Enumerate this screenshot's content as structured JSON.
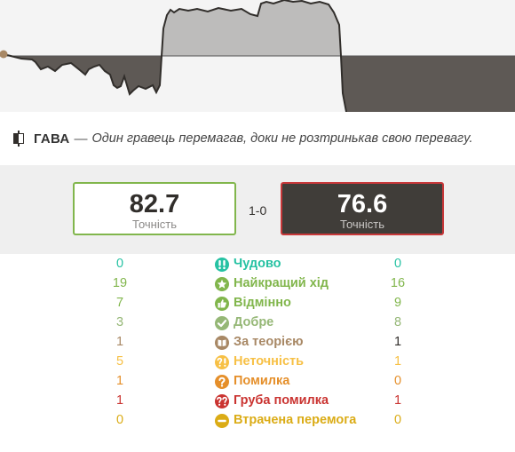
{
  "headline": {
    "title": "ГАВА",
    "dash": "—",
    "description": "Один гравець перемагав, доки не розтринькав свою перевагу."
  },
  "summary": {
    "white_accuracy": "82.7",
    "black_accuracy": "76.6",
    "accuracy_label": "Точність",
    "score": "1-0"
  },
  "classifications": [
    {
      "name": "Чудово",
      "white": "0",
      "black": "0",
      "color": "#26c2a3",
      "icon": "brilliant-icon"
    },
    {
      "name": "Найкращий хід",
      "white": "19",
      "black": "16",
      "color": "#81b64c",
      "icon": "star-icon"
    },
    {
      "name": "Відмінно",
      "white": "7",
      "black": "9",
      "color": "#81b64c",
      "icon": "thumbs-up-icon"
    },
    {
      "name": "Добре",
      "white": "3",
      "black": "8",
      "color": "#95b776",
      "icon": "check-icon"
    },
    {
      "name": "За теорією",
      "white": "1",
      "black": "1",
      "color": "#a88865",
      "icon": "book-icon"
    },
    {
      "name": "Неточність",
      "white": "5",
      "black": "1",
      "color": "#f7c045",
      "icon": "inaccuracy-icon"
    },
    {
      "name": "Помилка",
      "white": "1",
      "black": "0",
      "color": "#e58f2a",
      "icon": "question-icon"
    },
    {
      "name": "Груба помилка",
      "white": "1",
      "black": "1",
      "color": "#ca3431",
      "icon": "blunder-icon"
    },
    {
      "name": "Втрачена перемога",
      "white": "0",
      "black": "0",
      "color": "#dbac16",
      "icon": "minus-icon"
    }
  ],
  "colors": {
    "graph_dark": "#5e5955",
    "graph_light": "#bdbcbb",
    "graph_bg": "#f4f4f4",
    "white_border": "#81b64c",
    "black_border": "#c8383a"
  }
}
